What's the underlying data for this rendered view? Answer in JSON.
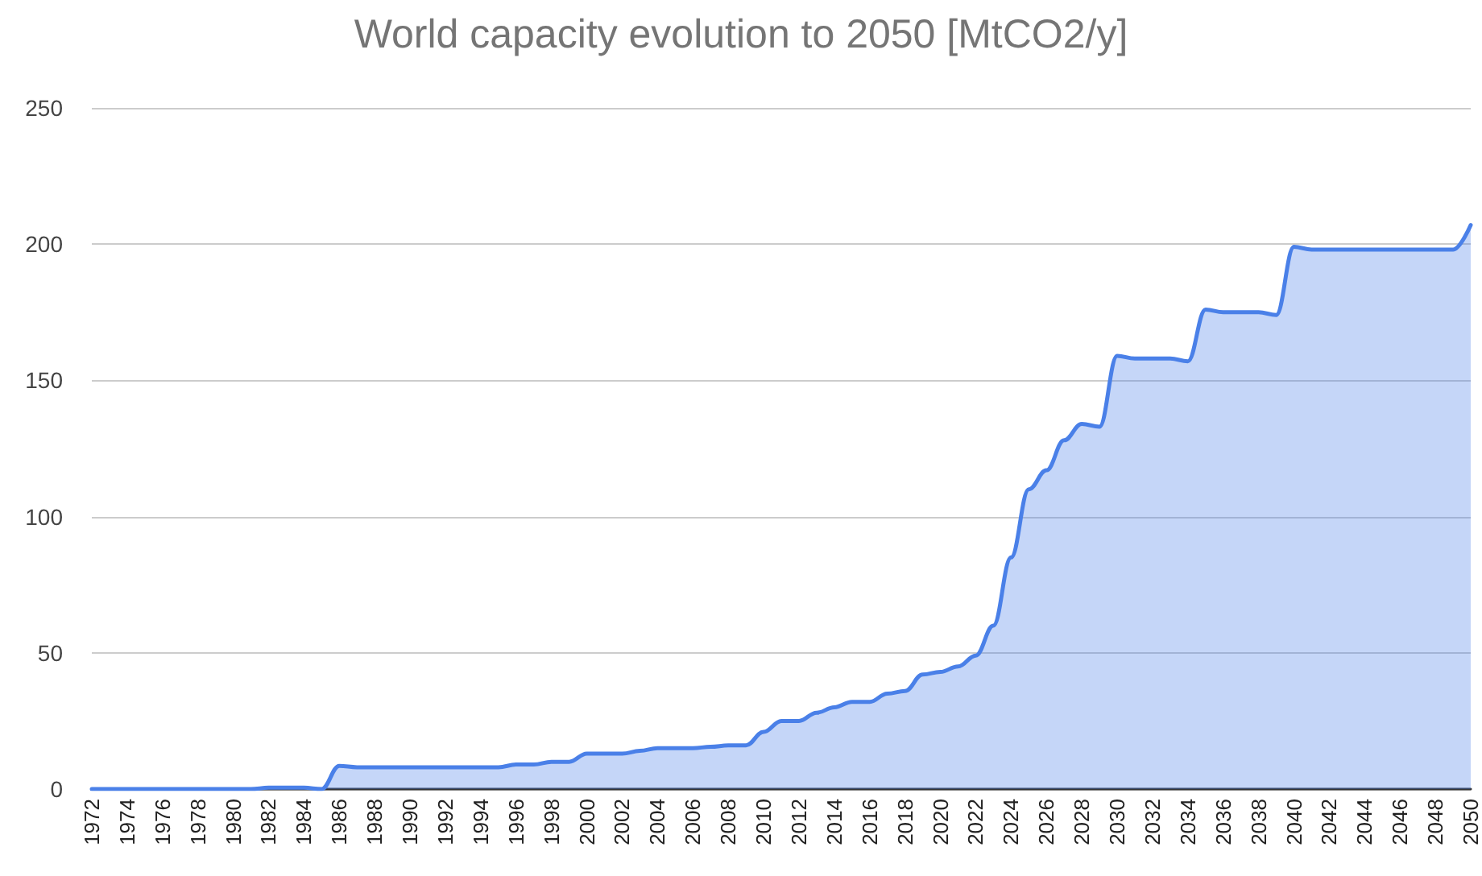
{
  "chart_data": {
    "type": "area",
    "title": "World capacity evolution to 2050 [MtCO2/y]",
    "categories": [
      "1972",
      null,
      "1974",
      null,
      "1976",
      null,
      "1978",
      null,
      "1980",
      null,
      "1982",
      null,
      "1984",
      null,
      "1986",
      null,
      "1988",
      null,
      "1990",
      null,
      "1992",
      null,
      "1994",
      null,
      "1996",
      null,
      "1998",
      null,
      "2000",
      null,
      "2002",
      null,
      "2004",
      null,
      "2006",
      null,
      "2008",
      null,
      "2010",
      null,
      "2012",
      null,
      "2014",
      null,
      "2016",
      null,
      "2018",
      null,
      "2020",
      null,
      "2022",
      null,
      "2024",
      null,
      "2026",
      null,
      "2028",
      null,
      "2030",
      null,
      "2032",
      null,
      "2034",
      null,
      "2036",
      null,
      "2038",
      null,
      "2040",
      null,
      "2042",
      null,
      "2044",
      null,
      "2046",
      null,
      "2048",
      null,
      "2050"
    ],
    "series": [
      {
        "color": "#4a80e8",
        "values": [
          0,
          0,
          0,
          0,
          0,
          0,
          0,
          0,
          0,
          0,
          0.5,
          0.5,
          0.5,
          0,
          8.5,
          8,
          8,
          8,
          8,
          8,
          8,
          8,
          8,
          8,
          9,
          9,
          10,
          10,
          13,
          13,
          13,
          14,
          15,
          15,
          15,
          15.5,
          16,
          16,
          21,
          25,
          25,
          28,
          30,
          32,
          32,
          35,
          36,
          42,
          43,
          45,
          49,
          60,
          85,
          110,
          117,
          128,
          134,
          133,
          159,
          158,
          158,
          158,
          157,
          176,
          175,
          175,
          175,
          174,
          199,
          198,
          198,
          198,
          198,
          198,
          198,
          198,
          198,
          198,
          207
        ]
      }
    ],
    "ylim": [
      0,
      250
    ],
    "yticks": [
      0,
      50,
      100,
      150,
      200,
      250
    ],
    "grid": "y",
    "marker": "none",
    "line_style": "solid"
  }
}
